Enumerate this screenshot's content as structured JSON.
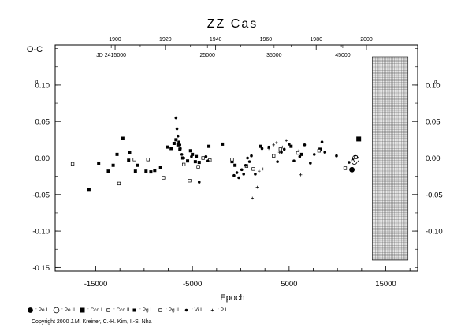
{
  "chart_data": {
    "type": "scatter",
    "title": "ZZ Cas",
    "xlabel": "Epoch",
    "ylabel": "O-C",
    "xlim": [
      -19200,
      18300
    ],
    "ylim": [
      -0.155,
      0.155
    ],
    "x_ticks": [
      -15000,
      -5000,
      5000,
      15000
    ],
    "x_tick_labels": [
      "-15000",
      "-5000",
      "5000",
      "15000"
    ],
    "y_ticks": [
      -0.15,
      -0.1,
      -0.05,
      0.0,
      0.05,
      0.1
    ],
    "y_tick_labels_left": [
      "-0.15",
      "-0.10",
      "-0.05",
      "0.00",
      "0.05",
      "0.10"
    ],
    "y_tick_labels_right": [
      "-0.10",
      "-0.05",
      "0.00",
      "0.05",
      "0.10"
    ],
    "y_unit_marker": "d",
    "top_year_axis": {
      "ticks": [
        1900,
        1920,
        1940,
        1960,
        1980,
        2000
      ],
      "epoch_at": [
        -13000,
        -7800,
        -2600,
        2600,
        7800,
        13000
      ]
    },
    "jd_labels": [
      {
        "text": "JD 2415000",
        "epoch": -13400
      },
      {
        "text": "25000",
        "epoch": -3450
      },
      {
        "text": "35000",
        "epoch": 3450
      },
      {
        "text": "45000",
        "epoch": 10550
      }
    ],
    "future_region": [
      13600,
      17300
    ],
    "grid": false,
    "series": [
      {
        "name": "Pe I",
        "marker": "filled-circle",
        "x": [
          11500,
          11700
        ],
        "y": [
          -0.016,
          -0.003
        ]
      },
      {
        "name": "Pe II",
        "marker": "open-circle",
        "x": [
          11750,
          11850,
          11950
        ],
        "y": [
          -0.005,
          0.0,
          -0.002
        ]
      },
      {
        "name": "Ccd I",
        "marker": "filled-square",
        "x": [
          12200
        ],
        "y": [
          0.026
        ]
      },
      {
        "name": "Ccd II",
        "marker": "open-square",
        "x": [
          10800,
          11900
        ],
        "y": [
          -0.014,
          0.001
        ]
      },
      {
        "name": "Pg I",
        "marker": "small-filled-square",
        "x": [
          -15700,
          -14700,
          -13700,
          -13200,
          -12800,
          -12200,
          -11600,
          -11500,
          -10900,
          -10700,
          -9800,
          -9300,
          -8900,
          -8300,
          -7600,
          -7200,
          -6900,
          -6700,
          -6500,
          -6300,
          -6000,
          -5500,
          -5200,
          -5000,
          -4700,
          -4600,
          -4300,
          -3300,
          -1900,
          -900,
          -600,
          2000,
          5200,
          6300,
          8200
        ],
        "y": [
          -0.043,
          -0.007,
          -0.018,
          -0.01,
          0.005,
          0.027,
          -0.003,
          0.008,
          -0.018,
          -0.01,
          -0.018,
          -0.019,
          -0.017,
          -0.013,
          0.015,
          0.013,
          0.02,
          0.025,
          0.018,
          0.012,
          0.0,
          -0.004,
          0.01,
          0.005,
          -0.005,
          0.002,
          -0.006,
          0.016,
          0.019,
          -0.005,
          -0.01,
          0.016,
          0.016,
          0.005,
          0.012
        ]
      },
      {
        "name": "Pg II",
        "marker": "open-square",
        "x": [
          -17400,
          -12600,
          -11000,
          -9600,
          -8000,
          -5900,
          -5300,
          -4400,
          -3900,
          -3200,
          -900,
          600,
          1300,
          3400,
          4100,
          5900,
          8100
        ],
        "y": [
          -0.008,
          -0.035,
          -0.002,
          -0.002,
          -0.027,
          -0.009,
          -0.031,
          -0.012,
          0.0,
          -0.003,
          -0.002,
          -0.011,
          -0.015,
          0.003,
          0.012,
          0.007,
          0.01
        ]
      },
      {
        "name": "Vi I",
        "marker": "small-filled-circle",
        "x": [
          -6700,
          -6600,
          -6500,
          -6400,
          -6300,
          -6250,
          -6100,
          -5900,
          -5100,
          -4300,
          -3600,
          -3400,
          -700,
          -400,
          -200,
          100,
          300,
          500,
          700,
          900,
          1100,
          1500,
          2200,
          2900,
          3800,
          4200,
          4500,
          5000,
          5500,
          6100,
          6600,
          7200,
          7600,
          8400,
          8700,
          9900,
          11200
        ],
        "y": [
          0.055,
          0.04,
          0.03,
          0.022,
          0.018,
          0.013,
          0.005,
          0.0,
          0.002,
          -0.033,
          0.002,
          -0.004,
          -0.024,
          -0.02,
          -0.027,
          -0.016,
          -0.022,
          -0.01,
          0.0,
          -0.005,
          0.003,
          -0.022,
          0.013,
          0.015,
          -0.005,
          0.008,
          0.012,
          0.019,
          -0.004,
          0.002,
          0.018,
          -0.007,
          0.005,
          0.022,
          0.008,
          0.003,
          -0.006
        ]
      },
      {
        "name": "P I",
        "marker": "plus",
        "x": [
          1200,
          1700,
          1900,
          2300,
          2900,
          3400,
          3700,
          4000,
          4300,
          4700,
          5300,
          6000,
          6200
        ],
        "y": [
          -0.055,
          -0.04,
          -0.018,
          -0.015,
          0.013,
          0.018,
          0.021,
          0.008,
          0.015,
          0.024,
          0.0,
          0.01,
          -0.023
        ]
      }
    ]
  },
  "legend_items": [
    {
      "label": "Pe I",
      "marker": "filled-circle"
    },
    {
      "label": "Pe II",
      "marker": "open-circle"
    },
    {
      "label": "Ccd I",
      "marker": "filled-square"
    },
    {
      "label": "Ccd II",
      "marker": "open-square"
    },
    {
      "label": "Pg I",
      "marker": "small-filled-square"
    },
    {
      "label": "Pg II",
      "marker": "open-square"
    },
    {
      "label": "Vi I",
      "marker": "small-filled-circle"
    },
    {
      "label": "P I",
      "marker": "plus"
    }
  ],
  "copyright": "Copyright 2000 J.M. Kreiner, C.-H. Kim, I.-S. Nha"
}
